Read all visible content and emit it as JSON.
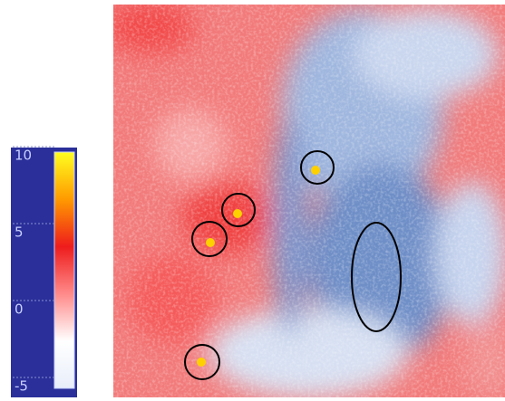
{
  "chart_data": {
    "type": "heatmap",
    "colorbar": {
      "ylim": [
        -5,
        10
      ],
      "yticks": [
        10,
        5,
        0,
        -5
      ],
      "colormap": [
        "#e8eefa",
        "#ffffff",
        "#ff8a8a",
        "#ee1c1c",
        "#ff9a00",
        "#ffff20"
      ]
    }
  }
}
